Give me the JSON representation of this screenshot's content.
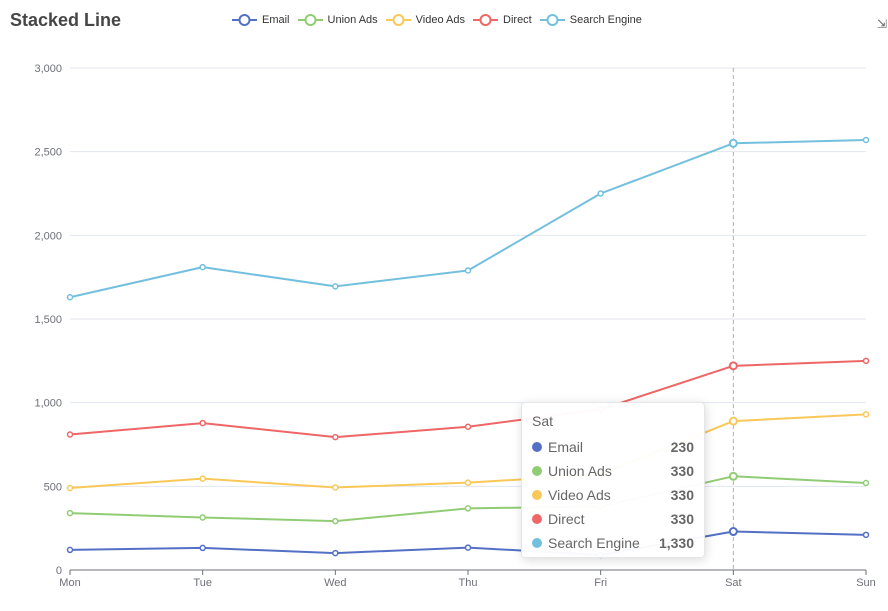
{
  "title": "Stacked Line",
  "legend": [
    {
      "name": "Email",
      "color": "#5470c6"
    },
    {
      "name": "Union Ads",
      "color": "#91cc75"
    },
    {
      "name": "Video Ads",
      "color": "#fac858"
    },
    {
      "name": "Direct",
      "color": "#ee6666"
    },
    {
      "name": "Search Engine",
      "color": "#73c0de"
    }
  ],
  "toolbox": {
    "icon": "save-as-image-icon",
    "glyph": "⇲"
  },
  "chart_data": {
    "type": "line",
    "stacked": true,
    "title": "Stacked Line",
    "categories": [
      "Mon",
      "Tue",
      "Wed",
      "Thu",
      "Fri",
      "Sat",
      "Sun"
    ],
    "ylim": [
      0,
      3000
    ],
    "yticks": [
      0,
      500,
      1000,
      1500,
      2000,
      2500,
      3000
    ],
    "ytick_labels": [
      "0",
      "500",
      "1,000",
      "1,500",
      "2,000",
      "2,500",
      "3,000"
    ],
    "grid": true,
    "legend_position": "top-center",
    "highlighted_category": "Sat",
    "series": [
      {
        "name": "Email",
        "color": "#5470c6",
        "values": [
          120,
          132,
          101,
          134,
          90,
          230,
          210
        ]
      },
      {
        "name": "Union Ads",
        "color": "#91cc75",
        "values": [
          220,
          182,
          191,
          234,
          290,
          330,
          310
        ]
      },
      {
        "name": "Video Ads",
        "color": "#fac858",
        "values": [
          150,
          232,
          201,
          154,
          190,
          330,
          410
        ]
      },
      {
        "name": "Direct",
        "color": "#ee6666",
        "values": [
          320,
          332,
          301,
          334,
          390,
          330,
          320
        ]
      },
      {
        "name": "Search Engine",
        "color": "#73c0de",
        "values": [
          820,
          932,
          901,
          934,
          1290,
          1330,
          1320
        ]
      }
    ]
  },
  "tooltip": {
    "title": "Sat",
    "rows": [
      {
        "name": "Email",
        "value": "230",
        "color": "#5470c6"
      },
      {
        "name": "Union Ads",
        "value": "330",
        "color": "#91cc75"
      },
      {
        "name": "Video Ads",
        "value": "330",
        "color": "#fac858"
      },
      {
        "name": "Direct",
        "value": "330",
        "color": "#ee6666"
      },
      {
        "name": "Search Engine",
        "value": "1,330",
        "color": "#73c0de"
      }
    ]
  }
}
